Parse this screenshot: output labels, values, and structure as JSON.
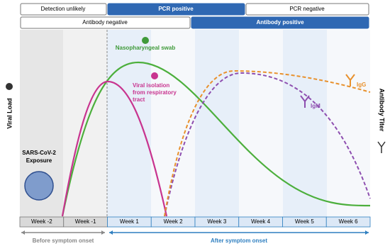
{
  "detection_row": [
    "Detection unlikely",
    "PCR positive",
    "PCR negative"
  ],
  "antibody_row": [
    "Antibody negative",
    "Antibody positive"
  ],
  "axes": {
    "left": "Viral Load",
    "right": "Antibody Titer"
  },
  "curves": {
    "nasopharyngeal": "Nasopharyngeal swab",
    "viral_isolation": [
      "Viral isolation",
      "from respiratory",
      "tract"
    ],
    "igg": "IgG",
    "igm": "IgM"
  },
  "exposure": [
    "SARS-CoV-2",
    "Exposure"
  ],
  "weeks": [
    "Week -2",
    "Week -1",
    "Week 1",
    "Week 2",
    "Week 3",
    "Week 4",
    "Week 5",
    "Week 6"
  ],
  "phases": {
    "before": "Before symptom onset",
    "after": "After symptom onset"
  }
}
